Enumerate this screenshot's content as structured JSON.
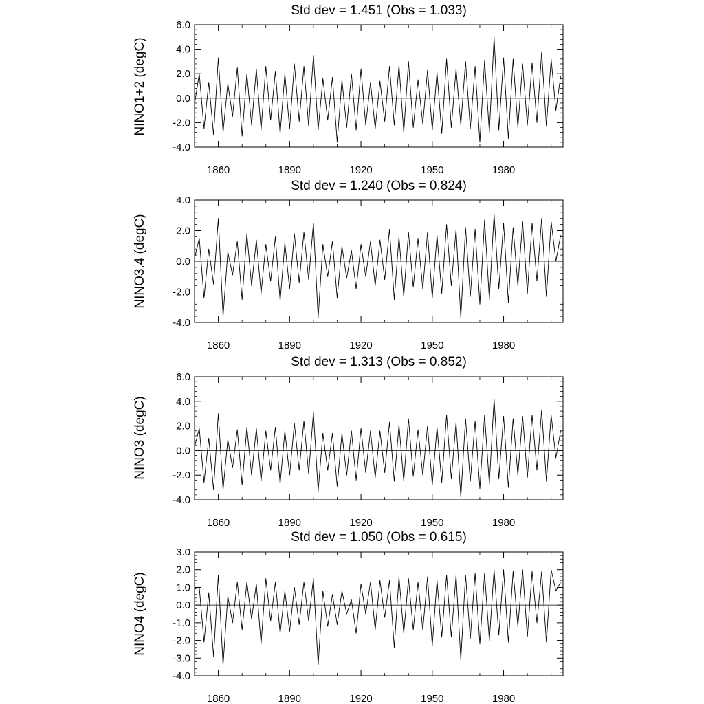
{
  "chart_data": [
    {
      "type": "line",
      "title": "Std dev = 1.451 (Obs = 1.033)",
      "ylabel": "NINO1+2 (degC)",
      "xlabel": "",
      "xlim": [
        1850,
        2005
      ],
      "ylim": [
        -4.0,
        6.0
      ],
      "yticks": [
        -4.0,
        -2.0,
        0.0,
        2.0,
        4.0,
        6.0
      ],
      "ytick_labels": [
        "-4.0",
        "-2.0",
        "0.0",
        "2.0",
        "4.0",
        "6.0"
      ],
      "xticks": [
        1860,
        1890,
        1920,
        1950,
        1980
      ],
      "xtick_labels": [
        "1860",
        "1890",
        "1920",
        "1950",
        "1980"
      ],
      "zero_line": true,
      "series": [
        {
          "name": "NINO1+2",
          "x": [
            1850,
            1852,
            1854,
            1856,
            1858,
            1860,
            1862,
            1864,
            1866,
            1868,
            1870,
            1872,
            1874,
            1876,
            1878,
            1880,
            1882,
            1884,
            1886,
            1888,
            1890,
            1892,
            1894,
            1896,
            1898,
            1900,
            1902,
            1904,
            1906,
            1908,
            1910,
            1912,
            1914,
            1916,
            1918,
            1920,
            1922,
            1924,
            1926,
            1928,
            1930,
            1932,
            1934,
            1936,
            1938,
            1940,
            1942,
            1944,
            1946,
            1948,
            1950,
            1952,
            1954,
            1956,
            1958,
            1960,
            1962,
            1964,
            1966,
            1968,
            1970,
            1972,
            1974,
            1976,
            1978,
            1980,
            1982,
            1984,
            1986,
            1988,
            1990,
            1992,
            1994,
            1996,
            1998,
            2000,
            2002,
            2004
          ],
          "y": [
            -0.5,
            2.0,
            -2.5,
            1.3,
            -3.0,
            3.3,
            -2.8,
            1.2,
            -1.5,
            2.5,
            -3.1,
            2.0,
            -2.2,
            2.4,
            -2.6,
            2.6,
            -1.8,
            2.2,
            -2.9,
            2.0,
            -2.5,
            2.8,
            -1.9,
            2.6,
            -2.3,
            3.5,
            -2.6,
            1.6,
            -1.8,
            1.7,
            -3.6,
            1.5,
            -2.4,
            2.0,
            -2.6,
            2.4,
            -2.2,
            1.3,
            -2.5,
            1.4,
            -1.9,
            2.6,
            -2.2,
            2.7,
            -2.8,
            3.0,
            -2.4,
            1.5,
            -2.1,
            2.3,
            -2.6,
            2.1,
            -2.9,
            3.2,
            -2.4,
            2.4,
            -2.2,
            3.0,
            -2.5,
            2.6,
            -3.6,
            3.1,
            -2.8,
            5.0,
            -2.6,
            3.3,
            -3.3,
            3.2,
            -2.4,
            2.8,
            -2.2,
            2.9,
            -2.0,
            3.8,
            -2.3,
            3.2,
            -1.0,
            1.8
          ]
        }
      ]
    },
    {
      "type": "line",
      "title": "Std dev = 1.240 (Obs = 0.824)",
      "ylabel": "NINO3.4 (degC)",
      "xlabel": "",
      "xlim": [
        1850,
        2005
      ],
      "ylim": [
        -4.0,
        4.0
      ],
      "yticks": [
        -4.0,
        -2.0,
        0.0,
        2.0,
        4.0
      ],
      "ytick_labels": [
        "-4.0",
        "-2.0",
        "0.0",
        "2.0",
        "4.0"
      ],
      "xticks": [
        1860,
        1890,
        1920,
        1950,
        1980
      ],
      "xtick_labels": [
        "1860",
        "1890",
        "1920",
        "1950",
        "1980"
      ],
      "zero_line": true,
      "series": [
        {
          "name": "NINO3.4",
          "x": [
            1850,
            1852,
            1854,
            1856,
            1858,
            1860,
            1862,
            1864,
            1866,
            1868,
            1870,
            1872,
            1874,
            1876,
            1878,
            1880,
            1882,
            1884,
            1886,
            1888,
            1890,
            1892,
            1894,
            1896,
            1898,
            1900,
            1902,
            1904,
            1906,
            1908,
            1910,
            1912,
            1914,
            1916,
            1918,
            1920,
            1922,
            1924,
            1926,
            1928,
            1930,
            1932,
            1934,
            1936,
            1938,
            1940,
            1942,
            1944,
            1946,
            1948,
            1950,
            1952,
            1954,
            1956,
            1958,
            1960,
            1962,
            1964,
            1966,
            1968,
            1970,
            1972,
            1974,
            1976,
            1978,
            1980,
            1982,
            1984,
            1986,
            1988,
            1990,
            1992,
            1994,
            1996,
            1998,
            2000,
            2002,
            2004
          ],
          "y": [
            0.2,
            1.5,
            -2.4,
            0.8,
            -1.5,
            2.8,
            -3.6,
            0.6,
            -0.9,
            1.3,
            -2.5,
            1.8,
            -1.6,
            1.4,
            -2.1,
            1.1,
            -1.3,
            1.6,
            -2.6,
            1.2,
            -1.8,
            1.8,
            -1.4,
            1.9,
            -1.2,
            2.5,
            -3.7,
            1.1,
            -1.0,
            1.3,
            -2.4,
            1.0,
            -1.1,
            0.7,
            -1.8,
            1.1,
            -1.0,
            1.3,
            -1.6,
            1.4,
            -1.2,
            2.1,
            -2.5,
            1.6,
            -2.3,
            1.9,
            -1.7,
            1.5,
            -1.8,
            1.9,
            -2.4,
            1.7,
            -2.1,
            2.4,
            -1.6,
            2.1,
            -3.7,
            2.2,
            -2.3,
            2.1,
            -2.8,
            2.7,
            -2.5,
            3.1,
            -1.8,
            2.5,
            -2.7,
            2.2,
            -1.6,
            2.6,
            -2.1,
            2.5,
            -1.3,
            2.8,
            -2.3,
            2.6,
            0.0,
            1.7
          ]
        }
      ]
    },
    {
      "type": "line",
      "title": "Std dev = 1.313 (Obs = 0.852)",
      "ylabel": "NINO3 (degC)",
      "xlabel": "",
      "xlim": [
        1850,
        2005
      ],
      "ylim": [
        -4.0,
        6.0
      ],
      "yticks": [
        -4.0,
        -2.0,
        0.0,
        2.0,
        4.0,
        6.0
      ],
      "ytick_labels": [
        "-4.0",
        "-2.0",
        "0.0",
        "2.0",
        "4.0",
        "6.0"
      ],
      "xticks": [
        1860,
        1890,
        1920,
        1950,
        1980
      ],
      "xtick_labels": [
        "1860",
        "1890",
        "1920",
        "1950",
        "1980"
      ],
      "zero_line": true,
      "series": [
        {
          "name": "NINO3",
          "x": [
            1850,
            1852,
            1854,
            1856,
            1858,
            1860,
            1862,
            1864,
            1866,
            1868,
            1870,
            1872,
            1874,
            1876,
            1878,
            1880,
            1882,
            1884,
            1886,
            1888,
            1890,
            1892,
            1894,
            1896,
            1898,
            1900,
            1902,
            1904,
            1906,
            1908,
            1910,
            1912,
            1914,
            1916,
            1918,
            1920,
            1922,
            1924,
            1926,
            1928,
            1930,
            1932,
            1934,
            1936,
            1938,
            1940,
            1942,
            1944,
            1946,
            1948,
            1950,
            1952,
            1954,
            1956,
            1958,
            1960,
            1962,
            1964,
            1966,
            1968,
            1970,
            1972,
            1974,
            1976,
            1978,
            1980,
            1982,
            1984,
            1986,
            1988,
            1990,
            1992,
            1994,
            1996,
            1998,
            2000,
            2002,
            2004
          ],
          "y": [
            0.3,
            1.8,
            -2.6,
            1.0,
            -3.2,
            3.0,
            -3.2,
            0.9,
            -1.4,
            1.7,
            -2.8,
            1.9,
            -2.0,
            1.8,
            -2.5,
            1.6,
            -1.6,
            1.9,
            -2.7,
            1.6,
            -2.0,
            2.2,
            -1.6,
            2.4,
            -1.9,
            3.1,
            -3.3,
            1.4,
            -1.6,
            1.4,
            -2.9,
            1.4,
            -2.0,
            1.6,
            -2.4,
            1.8,
            -1.8,
            1.6,
            -2.2,
            1.6,
            -1.8,
            2.3,
            -2.5,
            2.1,
            -2.5,
            2.6,
            -2.1,
            1.7,
            -2.0,
            2.0,
            -2.8,
            1.9,
            -2.6,
            2.9,
            -2.3,
            2.3,
            -3.8,
            2.6,
            -2.5,
            2.4,
            -3.1,
            2.9,
            -2.7,
            4.2,
            -2.3,
            2.8,
            -3.0,
            2.6,
            -2.0,
            2.8,
            -2.2,
            2.9,
            -1.6,
            3.3,
            -2.5,
            2.9,
            -0.6,
            1.6
          ]
        }
      ]
    },
    {
      "type": "line",
      "title": "Std dev = 1.050 (Obs = 0.615)",
      "ylabel": "NINO4 (degC)",
      "xlabel": "",
      "xlim": [
        1850,
        2005
      ],
      "ylim": [
        -4.0,
        3.0
      ],
      "yticks": [
        -4.0,
        -3.0,
        -2.0,
        -1.0,
        0.0,
        1.0,
        2.0,
        3.0
      ],
      "ytick_labels": [
        "-4.0",
        "-3.0",
        "-2.0",
        "-1.0",
        "0.0",
        "1.0",
        "2.0",
        "3.0"
      ],
      "xticks": [
        1860,
        1890,
        1920,
        1950,
        1980
      ],
      "xtick_labels": [
        "1860",
        "1890",
        "1920",
        "1950",
        "1980"
      ],
      "zero_line": true,
      "series": [
        {
          "name": "NINO4",
          "x": [
            1850,
            1852,
            1854,
            1856,
            1858,
            1860,
            1862,
            1864,
            1866,
            1868,
            1870,
            1872,
            1874,
            1876,
            1878,
            1880,
            1882,
            1884,
            1886,
            1888,
            1890,
            1892,
            1894,
            1896,
            1898,
            1900,
            1902,
            1904,
            1906,
            1908,
            1910,
            1912,
            1914,
            1916,
            1918,
            1920,
            1922,
            1924,
            1926,
            1928,
            1930,
            1932,
            1934,
            1936,
            1938,
            1940,
            1942,
            1944,
            1946,
            1948,
            1950,
            1952,
            1954,
            1956,
            1958,
            1960,
            1962,
            1964,
            1966,
            1968,
            1970,
            1972,
            1974,
            1976,
            1978,
            1980,
            1982,
            1984,
            1986,
            1988,
            1990,
            1992,
            1994,
            1996,
            1998,
            2000,
            2002,
            2004
          ],
          "y": [
            0.9,
            1.0,
            -2.1,
            0.7,
            -2.9,
            1.7,
            -3.4,
            0.5,
            -1.0,
            1.3,
            -1.4,
            1.3,
            -0.8,
            1.2,
            -2.2,
            1.5,
            -0.9,
            1.3,
            -1.6,
            0.8,
            -1.5,
            1.0,
            -1.1,
            1.3,
            -0.9,
            1.5,
            -3.4,
            0.8,
            -1.2,
            0.6,
            -1.1,
            0.8,
            -0.5,
            0.3,
            -1.6,
            1.2,
            -0.5,
            1.3,
            -1.4,
            1.4,
            -0.7,
            1.4,
            -2.4,
            1.6,
            -1.6,
            1.5,
            -1.4,
            1.3,
            -1.4,
            1.6,
            -2.3,
            1.4,
            -1.8,
            1.7,
            -1.8,
            1.7,
            -3.1,
            1.7,
            -1.9,
            1.8,
            -2.2,
            1.8,
            -2.0,
            2.0,
            -1.7,
            2.0,
            -2.1,
            1.9,
            -1.2,
            2.0,
            -1.8,
            1.9,
            -1.0,
            1.9,
            -2.1,
            2.0,
            0.8,
            1.3
          ]
        }
      ]
    }
  ]
}
